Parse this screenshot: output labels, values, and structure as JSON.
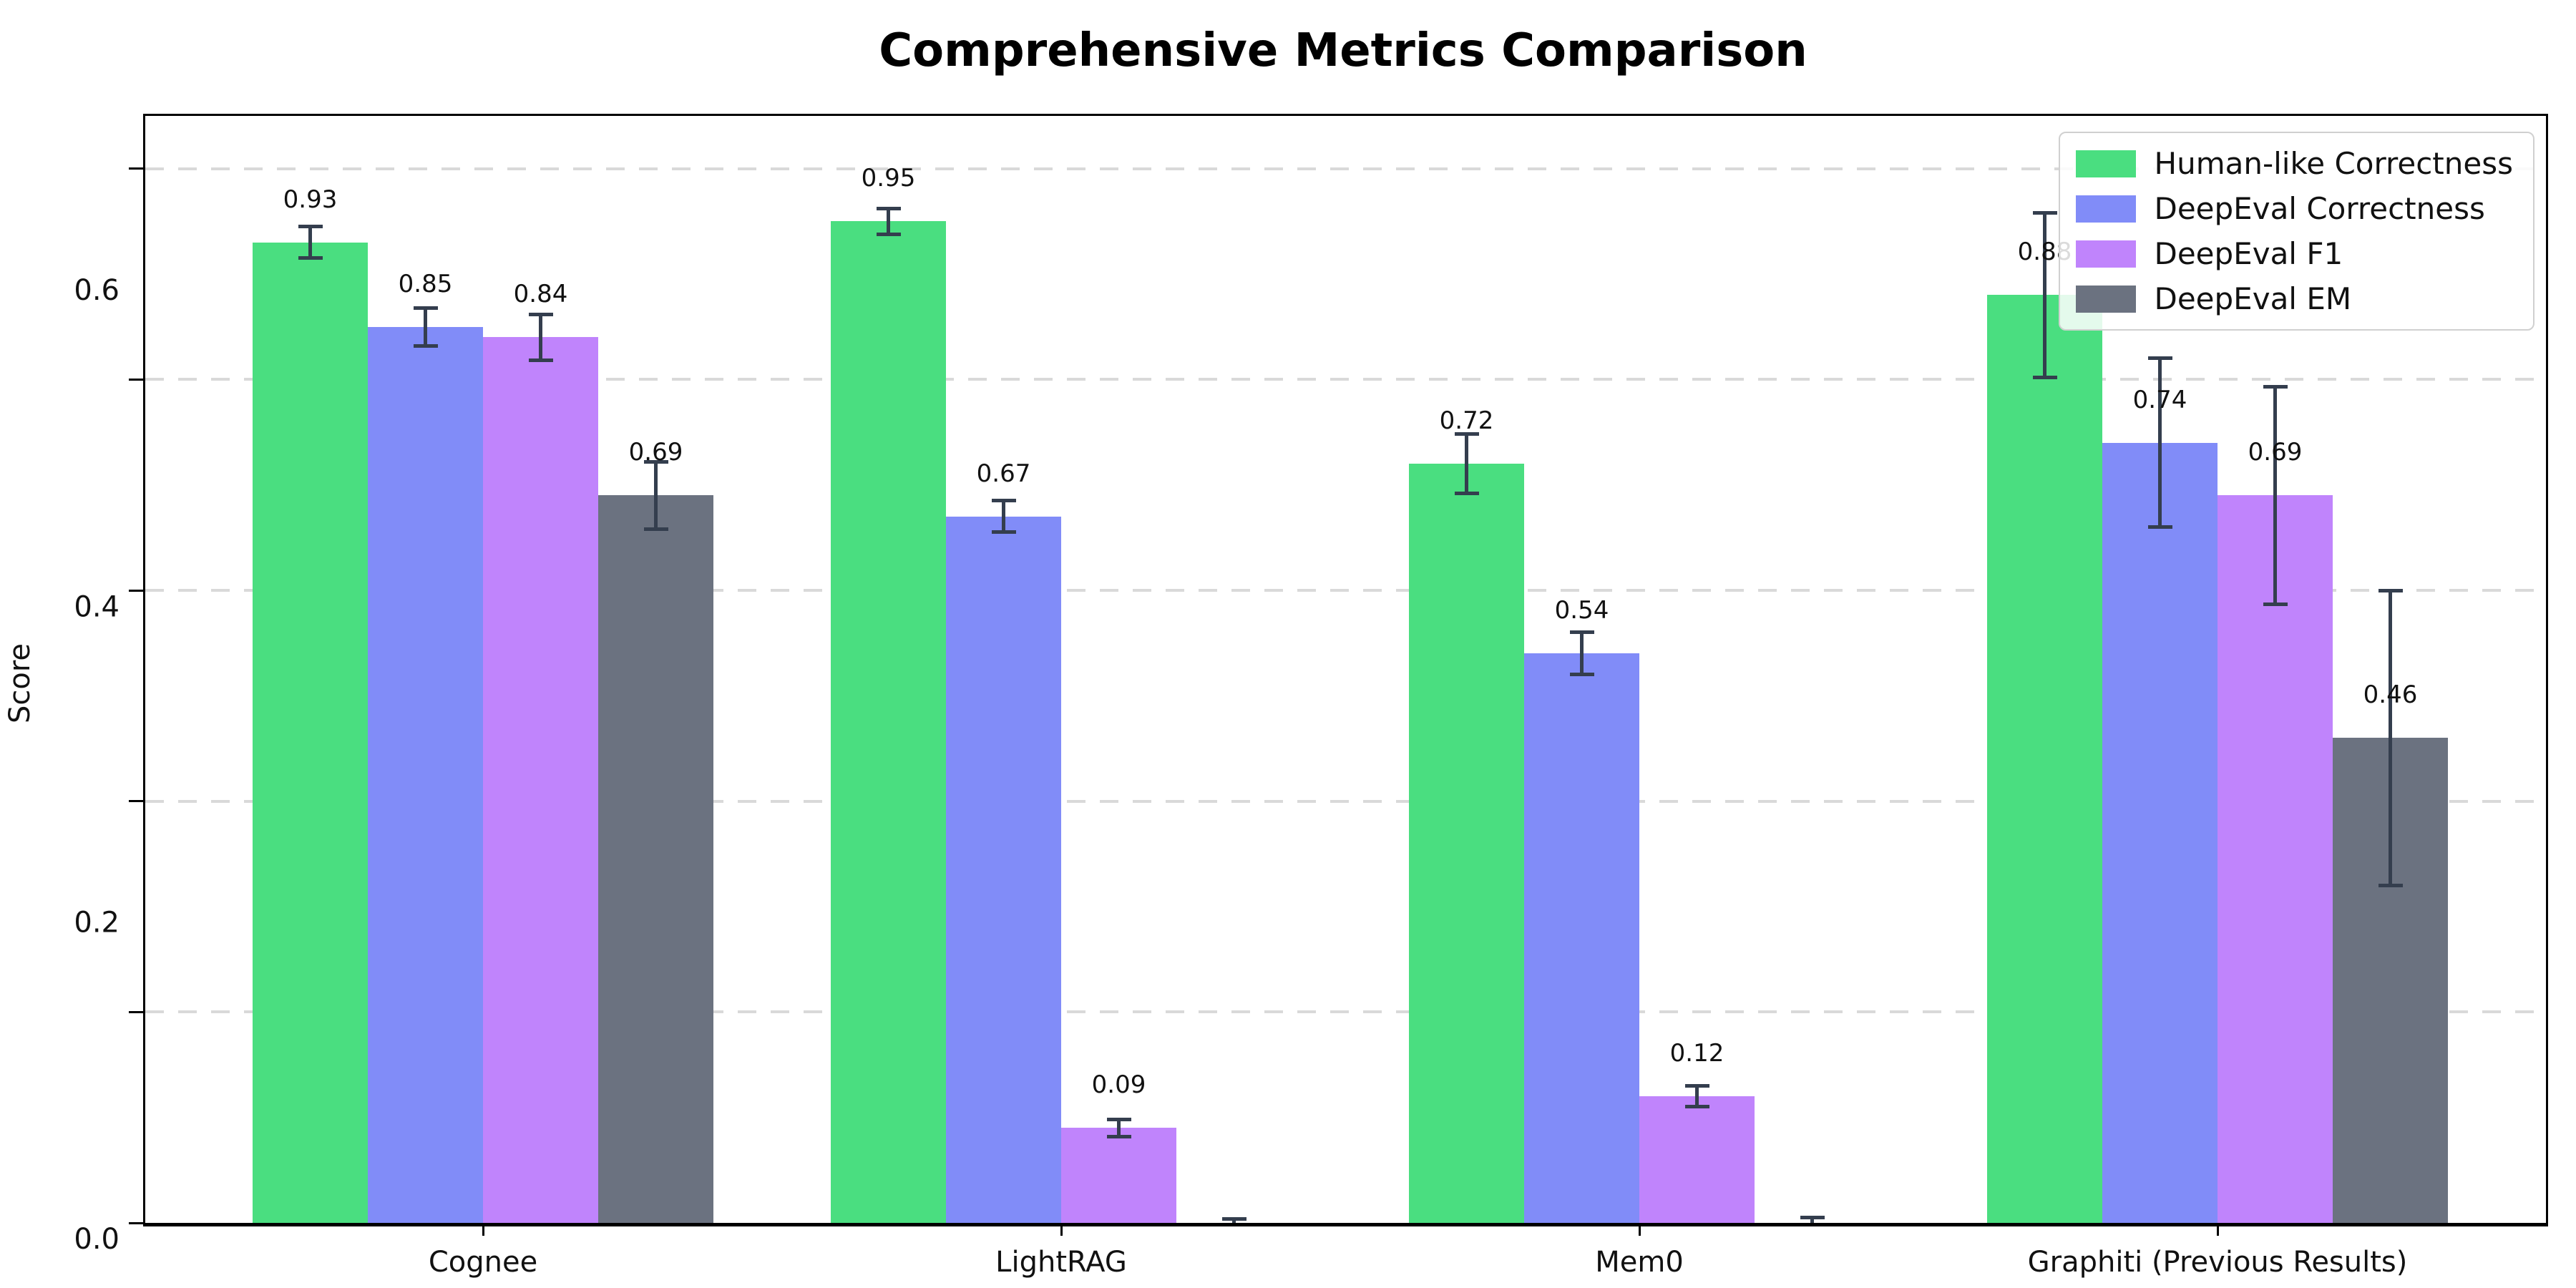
{
  "title": "Comprehensive Metrics Comparison",
  "chart_data": {
    "type": "bar",
    "title": "Comprehensive Metrics Comparison",
    "xlabel": "",
    "ylabel": "Score",
    "ylim": [
      0,
      1.05
    ],
    "yticks": [
      "0.0",
      "0.2",
      "0.4",
      "0.6",
      "0.8",
      "1.0"
    ],
    "grid": "horizontal dashed gridlines at each y tick",
    "legend_position": "upper right",
    "categories": [
      "Cognee",
      "LightRAG",
      "Mem0",
      "Graphiti (Previous Results)"
    ],
    "series": [
      {
        "name": "Human-like Correctness",
        "color": "#4ade80",
        "values": [
          0.93,
          0.95,
          0.72,
          0.88
        ],
        "errors": [
          0.015,
          0.012,
          0.028,
          0.078
        ],
        "labels": [
          "0.93",
          "0.95",
          "0.72",
          "0.88"
        ]
      },
      {
        "name": "DeepEval Correctness",
        "color": "#818cf8",
        "values": [
          0.85,
          0.67,
          0.54,
          0.74
        ],
        "errors": [
          0.018,
          0.015,
          0.02,
          0.08
        ],
        "labels": [
          "0.85",
          "0.67",
          "0.54",
          "0.74"
        ]
      },
      {
        "name": "DeepEval F1",
        "color": "#c084fc",
        "values": [
          0.84,
          0.09,
          0.12,
          0.69
        ],
        "errors": [
          0.022,
          0.008,
          0.01,
          0.103
        ],
        "labels": [
          "0.84",
          "0.09",
          "0.12",
          "0.69"
        ]
      },
      {
        "name": "DeepEval EM",
        "color": "#6b7280",
        "values": [
          0.69,
          0.0,
          0.0,
          0.46
        ],
        "errors": [
          0.032,
          0.004,
          0.005,
          0.14
        ],
        "labels": [
          "0.69",
          "",
          "",
          "0.46"
        ]
      }
    ]
  },
  "colors": {
    "error_bar": "#343e4e",
    "grid": "#d9d9d9",
    "text": "#111111",
    "spine": "#000000",
    "legend_border": "#d0d0d0"
  }
}
